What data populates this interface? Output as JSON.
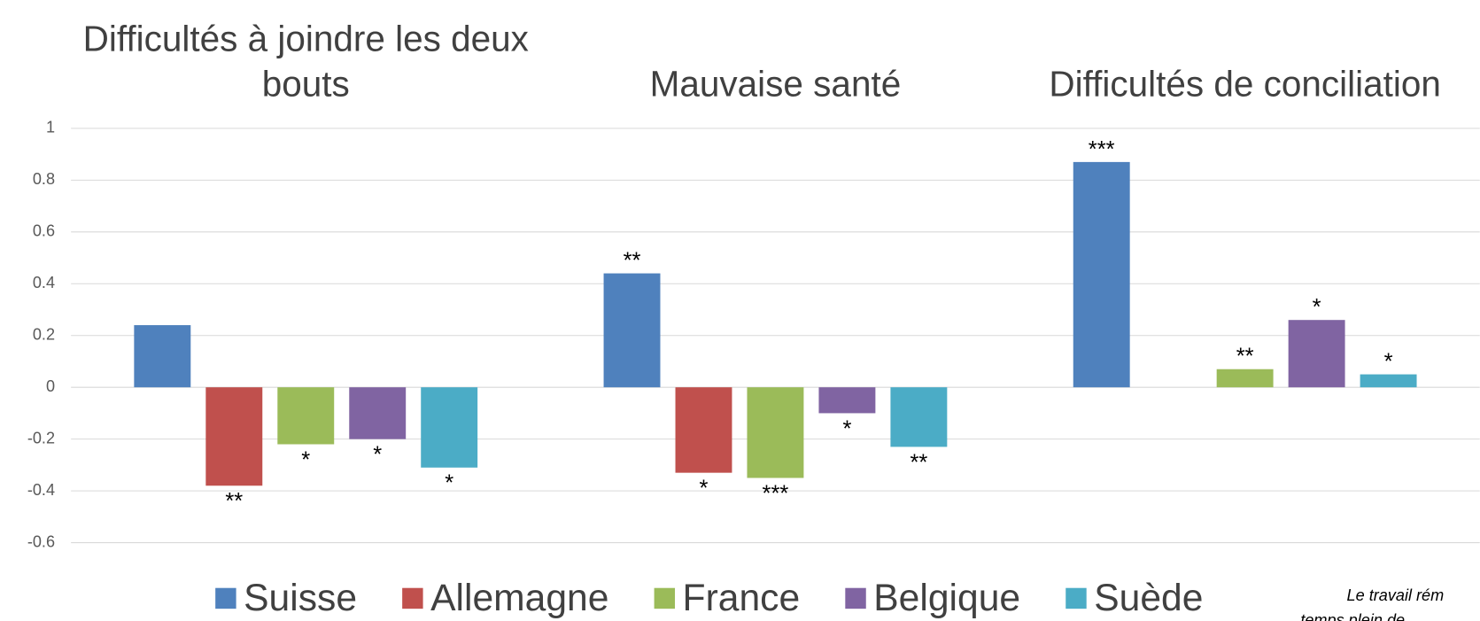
{
  "chart_data": {
    "type": "bar",
    "categories": [
      "Difficultés à joindre les deux bouts",
      "Mauvaise santé",
      "Difficultés de conciliation"
    ],
    "series": [
      {
        "name": "Suisse",
        "color": "#4f81bd",
        "values": [
          0.24,
          0.44,
          0.87
        ],
        "stars": [
          null,
          "**",
          "***"
        ]
      },
      {
        "name": "Allemagne",
        "color": "#c0504d",
        "values": [
          -0.38,
          -0.33,
          null
        ],
        "stars": [
          "**",
          "*",
          null
        ]
      },
      {
        "name": "France",
        "color": "#9bbb59",
        "values": [
          -0.22,
          -0.35,
          0.07
        ],
        "stars": [
          "*",
          "***",
          "**"
        ]
      },
      {
        "name": "Belgique",
        "color": "#8064a2",
        "values": [
          -0.2,
          -0.1,
          0.26
        ],
        "stars": [
          "*",
          "*",
          "*"
        ]
      },
      {
        "name": "Suède",
        "color": "#4bacc6",
        "values": [
          -0.31,
          -0.23,
          0.05
        ],
        "stars": [
          "*",
          "**",
          "*"
        ]
      }
    ],
    "ylim": [
      -0.6,
      1
    ],
    "yticks": [
      -0.6,
      -0.4,
      -0.2,
      {
        "value": 0,
        "label": "0"
      },
      0.2,
      0.4,
      0.6,
      0.8,
      1
    ],
    "grid": true,
    "legend": "bottom",
    "note": [
      "Le travail rém",
      "temps plein de"
    ]
  }
}
